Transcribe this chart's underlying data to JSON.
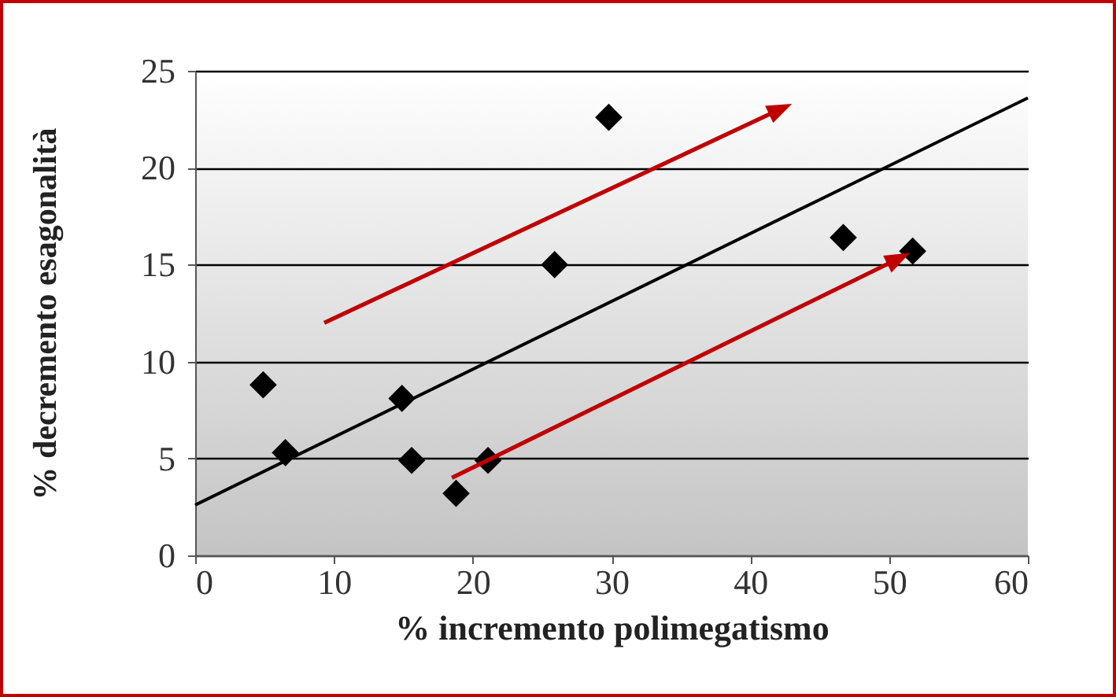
{
  "chart_data": {
    "type": "scatter",
    "xlabel": "% incremento polimegatismo",
    "ylabel": "% decremento esagonalità",
    "xlim": [
      0,
      60
    ],
    "xticks": [
      0,
      10,
      20,
      30,
      40,
      50,
      60
    ],
    "ylim": [
      0,
      25
    ],
    "yticks": [
      0,
      5,
      10,
      15,
      20,
      25
    ],
    "grid": "y",
    "series": [
      {
        "marker": "diamond",
        "color": "#000000",
        "x": [
          4.9,
          6.5,
          14.9,
          15.6,
          18.8,
          21.1,
          25.9,
          29.8,
          46.7,
          51.7
        ],
        "values": [
          8.8,
          5.3,
          8.1,
          4.9,
          3.2,
          4.9,
          15.0,
          22.6,
          16.4,
          15.7
        ]
      },
      {
        "type": "line",
        "color": "#000000",
        "x": [
          0,
          60
        ],
        "values": [
          2.6,
          23.6
        ]
      }
    ]
  }
}
